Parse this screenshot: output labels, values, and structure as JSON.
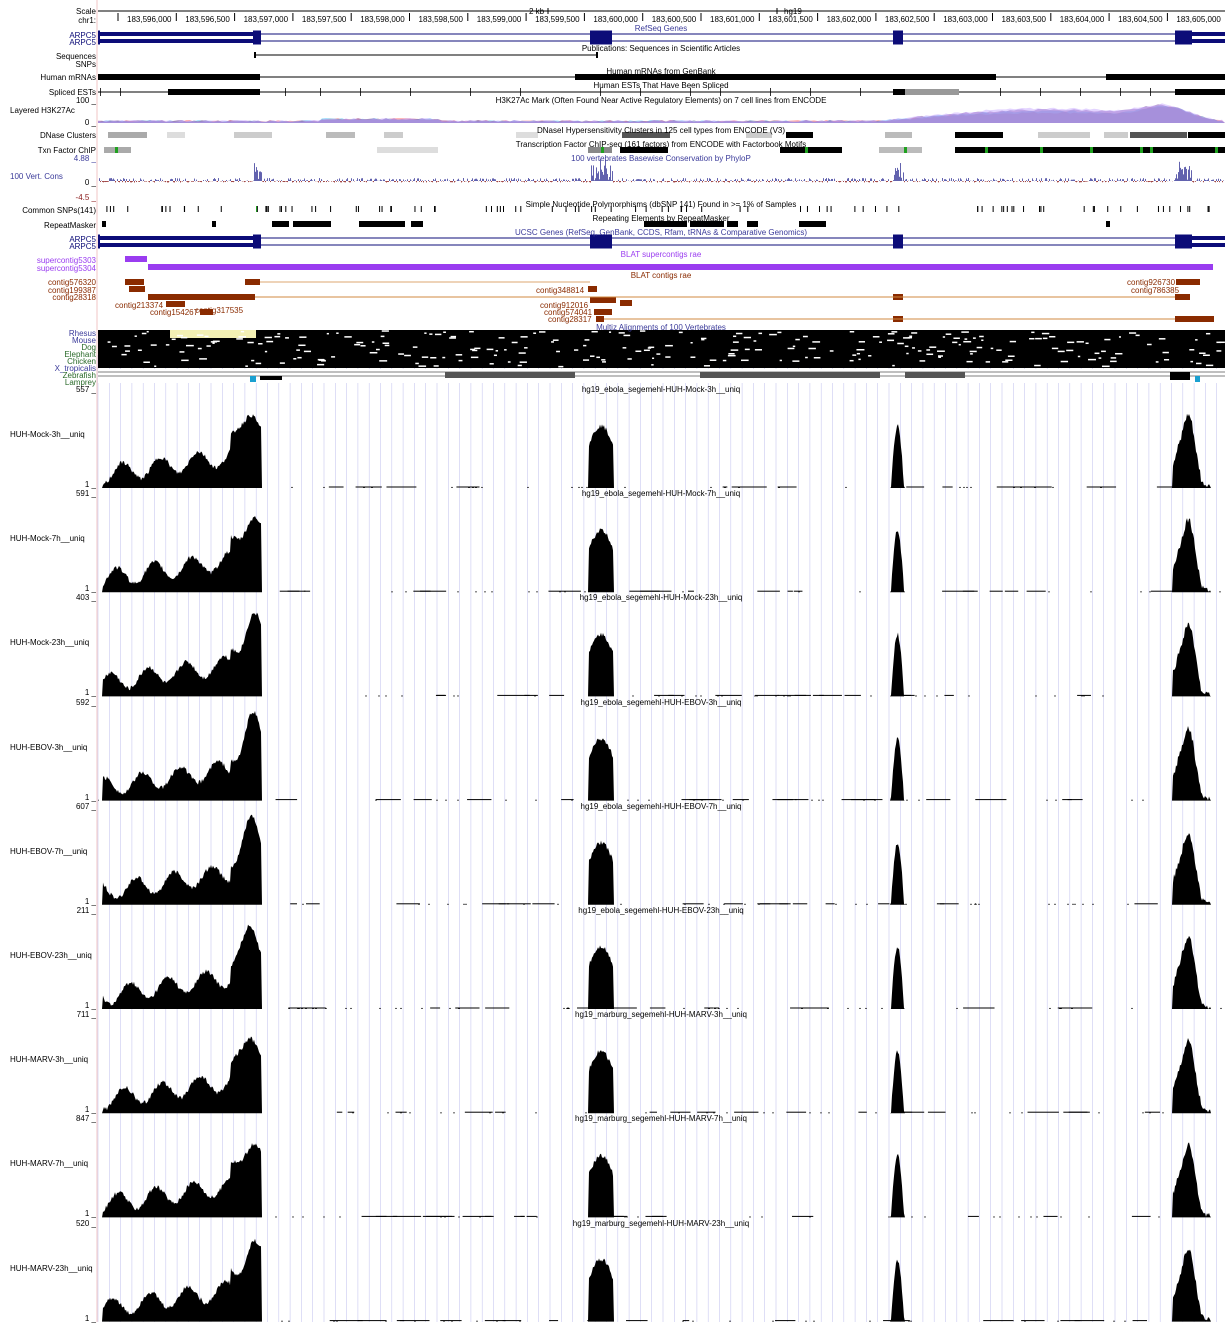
{
  "colors": {
    "refseq": "#0c0c78",
    "ucsc": "#0c0c78",
    "blat_super": "#9a3cf0",
    "blat_contig": "#8a2b00",
    "phylop": "#3b3b9a",
    "phylop_neg": "#8a1a1a",
    "green_mark": "#1fa01f",
    "black": "#000000",
    "grid": "#c8c8f0"
  },
  "icons": {
    "strand_arrow": "‹‹‹",
    "fwd_arrow": "›››"
  },
  "ruler": {
    "scale_label": "Scale",
    "chrom_label": "chr1:",
    "scale_bar": "2 kb",
    "assembly": "hg19",
    "ticks": [
      "183,596,000",
      "183,596,500",
      "183,597,000",
      "183,597,500",
      "183,598,000",
      "183,598,500",
      "183,599,000",
      "183,599,500",
      "183,600,000",
      "183,600,500",
      "183,601,000",
      "183,601,500",
      "183,602,000",
      "183,602,500",
      "183,603,000",
      "183,603,500",
      "183,604,000",
      "183,604,500",
      "183,605,000"
    ]
  },
  "tracks": {
    "refseq": {
      "title": "RefSeq Genes",
      "labels": [
        "ARPC5",
        "ARPC5"
      ]
    },
    "pubs": {
      "title": "Publications: Sequences in Scientific Articles",
      "labels": [
        "Sequences",
        "SNPs"
      ]
    },
    "mrna": {
      "title": "Human mRNAs from GenBank",
      "label": "Human mRNAs"
    },
    "est": {
      "title": "Human ESTs That Have Been Spliced",
      "label": "Spliced ESTs"
    },
    "h3k27": {
      "title": "H3K27Ac Mark (Often Found Near Active Regulatory Elements) on 7 cell lines from ENCODE",
      "label": "Layered H3K27Ac",
      "max": "100 _",
      "min": "0 _"
    },
    "dnase": {
      "title": "DNaseI Hypersensitivity Clusters in 125 cell types from ENCODE (V3)",
      "label": "DNase Clusters"
    },
    "tfbs": {
      "title": "Transcription Factor ChIP-seq (161 factors) from ENCODE with Factorbook Motifs",
      "label": "Txn Factor ChIP"
    },
    "cons": {
      "title": "100 vertebrates Basewise Conservation by PhyloP",
      "label": "100 Vert. Cons",
      "max": "4.88 _",
      "zero": "0 _",
      "min": "-4.5 _"
    },
    "snp": {
      "title": "Simple Nucleotide Polymorphisms (dbSNP 141) Found in >= 1% of Samples",
      "label": "Common SNPs(141)"
    },
    "rmsk": {
      "title": "Repeating Elements by RepeatMasker",
      "label": "RepeatMasker"
    },
    "ucsc": {
      "title": "UCSC Genes (RefSeq, GenBank, CCDS, Rfam, tRNAs & Comparative Genomics)",
      "labels": [
        "ARPC5",
        "ARPC5"
      ]
    },
    "blat_super": {
      "title": "BLAT supercontigs rae",
      "labels": [
        "supercontig5303",
        "supercontig5304"
      ]
    },
    "blat_contig": {
      "title": "BLAT contigs rae",
      "labels": [
        "contig576320",
        "contig199387",
        "contig28318",
        "contig317535",
        "contig213374",
        "contig154267",
        "contig348814",
        "contig912016",
        "contig574041",
        "contig28317",
        "contig926730",
        "contig786385"
      ]
    },
    "multiz": {
      "title": "Multiz Alignments of 100 Vertebrates",
      "species": [
        "Rhesus",
        "Mouse",
        "Dog",
        "Elephant",
        "Chicken",
        "X_tropicalis",
        "Zebrafish",
        "Lamprey"
      ]
    }
  },
  "coverage": [
    {
      "label": "HUH-Mock-3h__uniq",
      "title": "hg19_ebola_segemehl-HUH-Mock-3h__uniq",
      "max": "557 _",
      "min": "1 _"
    },
    {
      "label": "HUH-Mock-7h__uniq",
      "title": "hg19_ebola_segemehl-HUH-Mock-7h__uniq",
      "max": "591 _",
      "min": "1 _"
    },
    {
      "label": "HUH-Mock-23h__uniq",
      "title": "hg19_ebola_segemehl-HUH-Mock-23h__uniq",
      "max": "403 _",
      "min": "1 _"
    },
    {
      "label": "HUH-EBOV-3h__uniq",
      "title": "hg19_ebola_segemehl-HUH-EBOV-3h__uniq",
      "max": "592 _",
      "min": "1 _"
    },
    {
      "label": "HUH-EBOV-7h__uniq",
      "title": "hg19_ebola_segemehl-HUH-EBOV-7h__uniq",
      "max": "607 _",
      "min": "1 _"
    },
    {
      "label": "HUH-EBOV-23h__uniq",
      "title": "hg19_ebola_segemehl-HUH-EBOV-23h__uniq",
      "max": "211 _",
      "min": "1 _"
    },
    {
      "label": "HUH-MARV-3h__uniq",
      "title": "hg19_marburg_segemehl-HUH-MARV-3h__uniq",
      "max": "711 _",
      "min": "1 _"
    },
    {
      "label": "HUH-MARV-7h__uniq",
      "title": "hg19_marburg_segemehl-HUH-MARV-7h__uniq",
      "max": "847 _",
      "min": "1 _"
    },
    {
      "label": "HUH-MARV-23h__uniq",
      "title": "hg19_marburg_segemehl-HUH-MARV-23h__uniq",
      "max": "520 _",
      "min": "1 _"
    }
  ]
}
